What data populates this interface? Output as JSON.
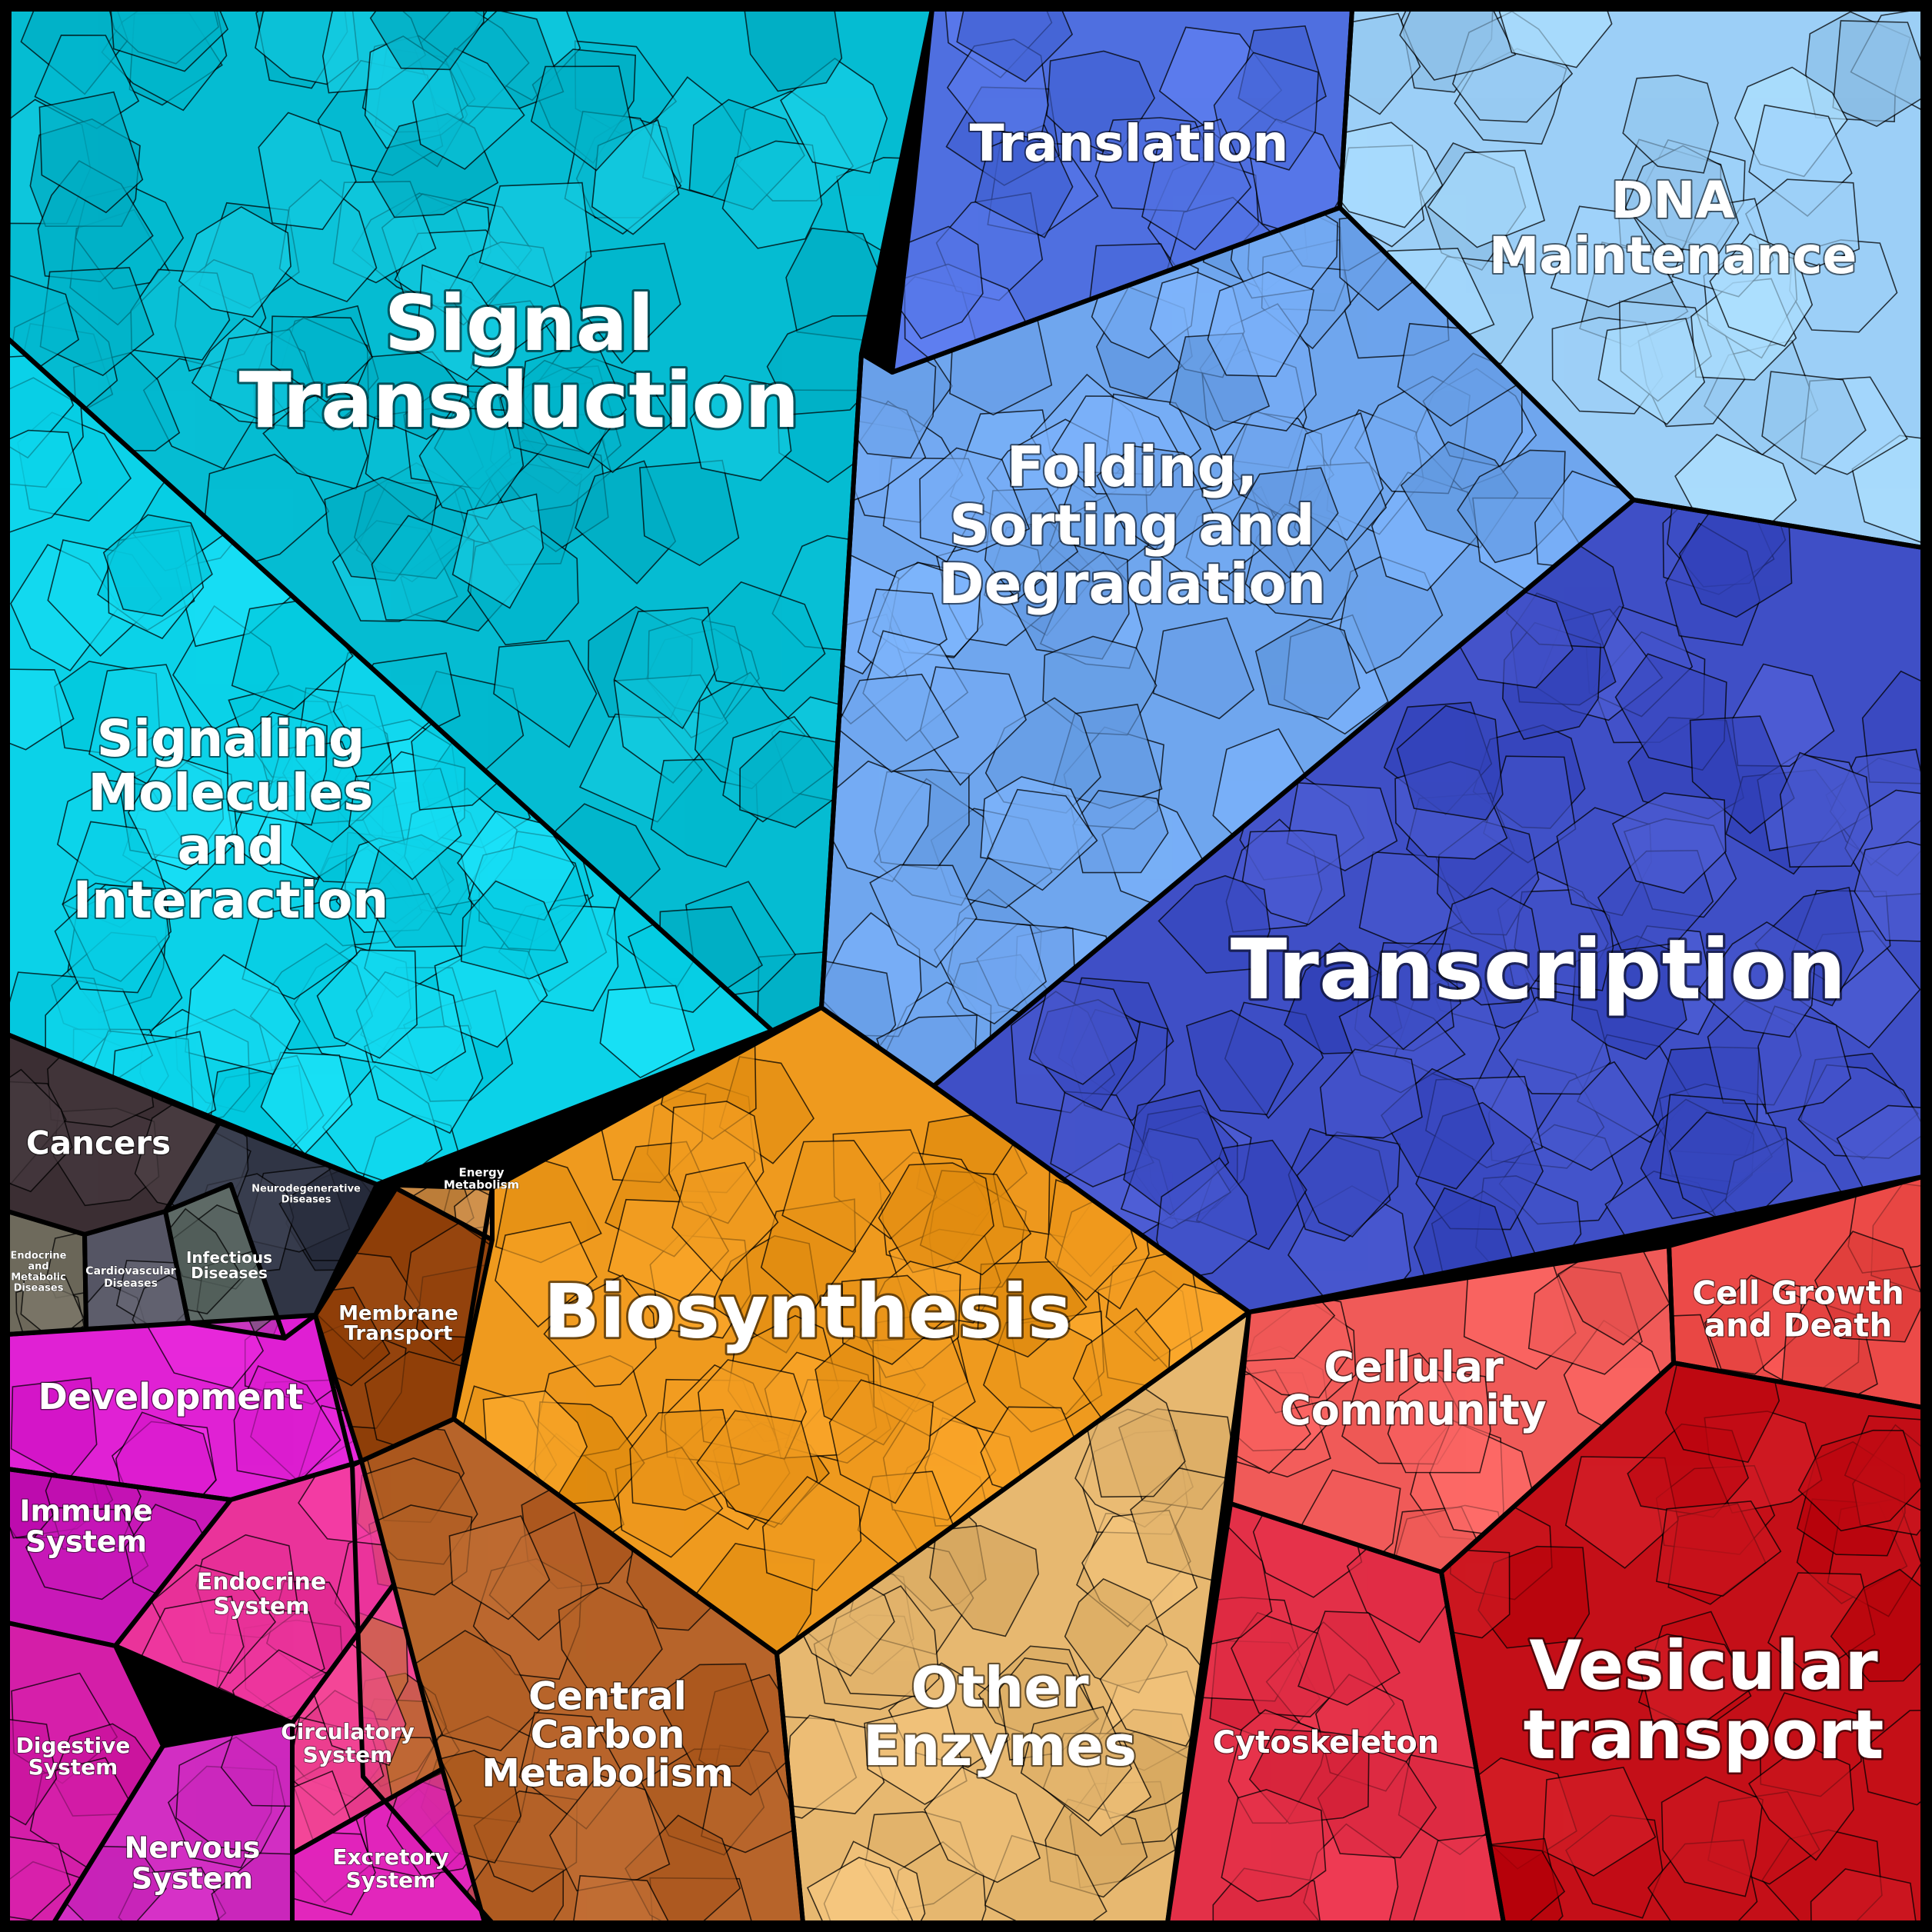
{
  "diagram": {
    "type": "voronoi-treemap",
    "colors": {
      "signal_transduction": "#05bcd2",
      "signaling_molecules": "#0bd2e8",
      "translation": "#4f6fe0",
      "dna_maintenance": "#9ccff7",
      "folding": "#6fa6ee",
      "transcription": "#3f4fc6",
      "biosynthesis": "#ef9a1e",
      "energy_metabolism": "#c98a46",
      "membrane_transport": "#8e3e08",
      "central_carbon": "#b7642a",
      "other_enzymes": "#e7b870",
      "cellular_community": "#f05a58",
      "cell_growth": "#ec4a48",
      "cytoskeleton": "#e33048",
      "vesicular_transport": "#c40f18",
      "cancers": "#3b2e33",
      "neurodegenerative": "#303545",
      "endocrine_metabolic": "#6e6a5c",
      "cardiovascular": "#555564",
      "infectious": "#5e6a66",
      "development": "#e021d4",
      "immune": "#c818b8",
      "endocrine_system": "#ea339a",
      "digestive": "#d41ea8",
      "nervous": "#d22ec3",
      "circulatory": "#f24596",
      "excretory": "#e226bc"
    },
    "labels": {
      "signal_transduction": [
        "Signal",
        "Transduction"
      ],
      "signaling_molecules": [
        "Signaling",
        "Molecules",
        "and",
        "Interaction"
      ],
      "translation": [
        "Translation"
      ],
      "dna_maintenance": [
        "DNA",
        "Maintenance"
      ],
      "folding": [
        "Folding,",
        "Sorting and",
        "Degradation"
      ],
      "transcription": [
        "Transcription"
      ],
      "biosynthesis": [
        "Biosynthesis"
      ],
      "energy_metabolism": [
        "Energy",
        "Metabolism"
      ],
      "membrane_transport": [
        "Membrane",
        "Transport"
      ],
      "central_carbon": [
        "Central",
        "Carbon",
        "Metabolism"
      ],
      "other_enzymes": [
        "Other",
        "Enzymes"
      ],
      "cellular_community": [
        "Cellular",
        "Community"
      ],
      "cell_growth": [
        "Cell Growth",
        "and Death"
      ],
      "cytoskeleton": [
        "Cytoskeleton"
      ],
      "vesicular_transport": [
        "Vesicular",
        "transport"
      ],
      "cancers": [
        "Cancers"
      ],
      "neurodegenerative": [
        "Neurodegenerative",
        "Diseases"
      ],
      "endocrine_metabolic": [
        "Endocrine",
        "and",
        "Metabolic",
        "Diseases"
      ],
      "cardiovascular": [
        "Cardiovascular",
        "Diseases"
      ],
      "infectious": [
        "Infectious",
        "Diseases"
      ],
      "development": [
        "Development"
      ],
      "immune": [
        "Immune",
        "System"
      ],
      "endocrine_system": [
        "Endocrine",
        "System"
      ],
      "digestive": [
        "Digestive",
        "System"
      ],
      "nervous": [
        "Nervous",
        "System"
      ],
      "circulatory": [
        "Circulatory",
        "System"
      ],
      "excretory": [
        "Excretory",
        "System"
      ]
    }
  }
}
